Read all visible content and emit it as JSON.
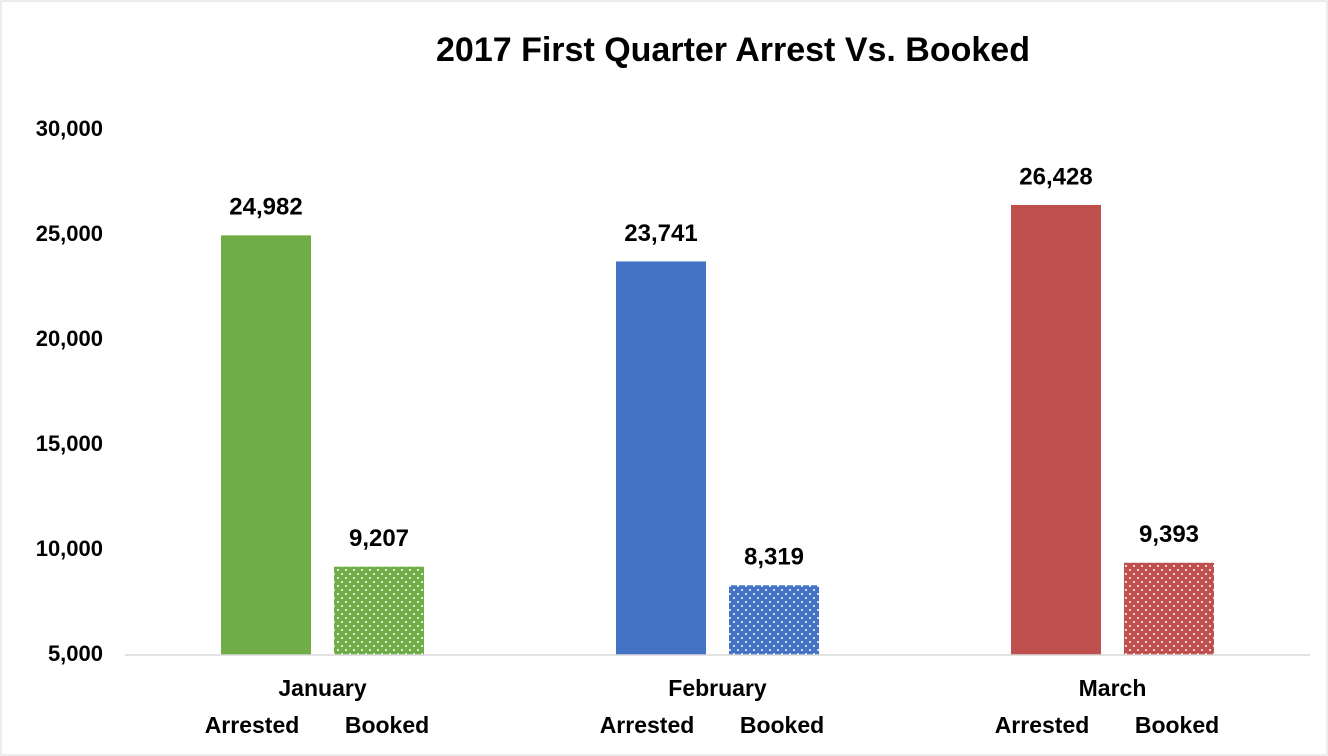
{
  "chart_data": {
    "type": "bar",
    "title": "2017 First Quarter Arrest Vs. Booked",
    "categories": [
      "January",
      "February",
      "March"
    ],
    "category_colors": [
      "#70ad47",
      "#4472c4",
      "#c0504d"
    ],
    "series": [
      {
        "name": "Arrested",
        "pattern": "solid",
        "values": [
          24982,
          23741,
          26428
        ],
        "value_labels": [
          "24,982",
          "23,741",
          "26,428"
        ]
      },
      {
        "name": "Booked",
        "pattern": "dotted",
        "values": [
          9207,
          8319,
          9393
        ],
        "value_labels": [
          "9,207",
          "8,319",
          "9,393"
        ]
      }
    ],
    "ylim": [
      5000,
      30000
    ],
    "yticks": [
      {
        "value": 5000,
        "label": "5,000"
      },
      {
        "value": 10000,
        "label": "10,000"
      },
      {
        "value": 15000,
        "label": "15,000"
      },
      {
        "value": 20000,
        "label": "20,000"
      },
      {
        "value": 25000,
        "label": "25,000"
      },
      {
        "value": 30000,
        "label": "30,000"
      }
    ],
    "grid": false
  }
}
